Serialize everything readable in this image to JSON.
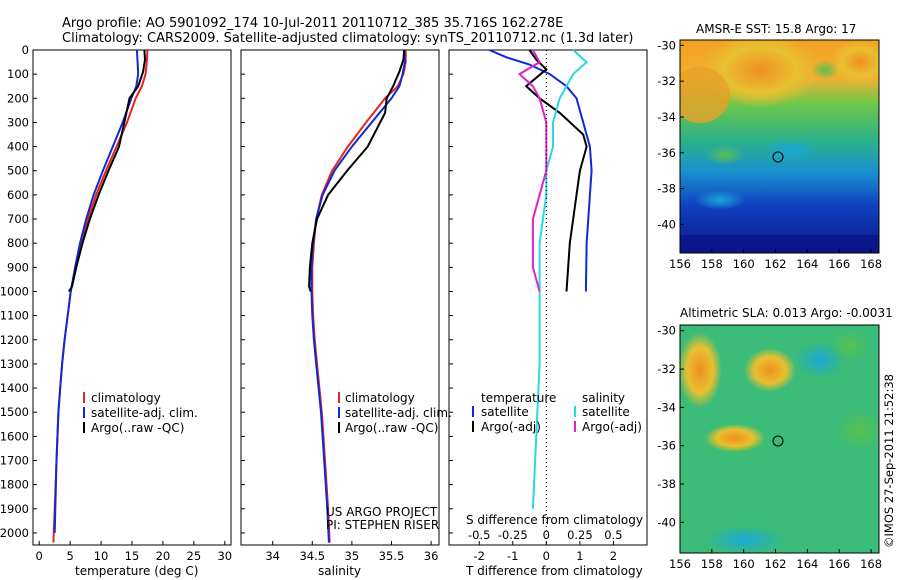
{
  "header": {
    "title_line1": "Argo profile: AO 5901092_174 10-Jul-2011 20110712_385 35.716S 162.278E",
    "title_line2": "Climatology: CARS2009. Satellite-adjusted climatology: synTS_20110712.nc (1.3d later)"
  },
  "colors": {
    "climatology": "#e8231c",
    "satellite": "#1028d8",
    "argo": "#000000",
    "sat_salinity": "#27d8e6",
    "argo_salinity": "#e020c8"
  },
  "legend": {
    "climatology": "climatology",
    "satellite_clim": "satellite-adj. clim.",
    "argo_raw": "Argo(..raw -QC)",
    "temperature_header": "temperature",
    "salinity_header": "salinity",
    "satellite": "satellite",
    "argo_adj": "Argo(-adj)"
  },
  "project": {
    "line1": "US ARGO PROJECT",
    "line2": "PI: STEPHEN RISER"
  },
  "watermark": "©IMOS 27-Sep-2011 21:52:38",
  "chart_data": [
    {
      "type": "line",
      "xlabel": "temperature (deg C)",
      "xlim": [
        -1,
        31
      ],
      "xticks": [
        0,
        5,
        10,
        15,
        20,
        25,
        30
      ],
      "ylim": [
        2050,
        0
      ],
      "yticks": [
        0,
        100,
        200,
        300,
        400,
        500,
        600,
        700,
        800,
        900,
        1000,
        1100,
        1200,
        1300,
        1400,
        1500,
        1600,
        1700,
        1800,
        1900,
        2000
      ],
      "series": [
        {
          "name": "climatology",
          "color": "#e8231c",
          "x": [
            17.5,
            17.4,
            17.2,
            16.6,
            15.6,
            14.2,
            12.5,
            10.8,
            9.2,
            7.9,
            6.8,
            5.9,
            5.1,
            4.6,
            4.1,
            3.7,
            3.4,
            3.1,
            2.8,
            2.5,
            2.3
          ],
          "y": [
            0,
            50,
            100,
            150,
            200,
            300,
            400,
            500,
            600,
            700,
            800,
            900,
            1000,
            1100,
            1200,
            1300,
            1400,
            1500,
            1700,
            1900,
            2040
          ]
        },
        {
          "name": "satellite-adj. clim.",
          "color": "#1028d8",
          "x": [
            15.8,
            15.9,
            16.0,
            15.7,
            14.9,
            13.5,
            11.9,
            10.3,
            8.8,
            7.6,
            6.6,
            5.8,
            5.1,
            4.6,
            4.1,
            3.7,
            3.4,
            3.1,
            2.8,
            2.6,
            2.5
          ],
          "y": [
            0,
            50,
            100,
            150,
            200,
            300,
            400,
            500,
            600,
            700,
            800,
            900,
            1000,
            1100,
            1200,
            1300,
            1400,
            1500,
            1700,
            1900,
            2000
          ]
        },
        {
          "name": "Argo(..raw -QC)",
          "color": "#000000",
          "x": [
            17.0,
            17.1,
            16.8,
            16.0,
            14.6,
            14.1,
            12.9,
            11.2,
            9.6,
            8.2,
            7.0,
            6.0,
            5.3,
            4.8
          ],
          "y": [
            0,
            40,
            90,
            150,
            200,
            260,
            400,
            500,
            600,
            700,
            800,
            900,
            980,
            1000
          ]
        }
      ],
      "legend_entries": [
        "climatology",
        "satellite-adj. clim.",
        "Argo(..raw -QC)"
      ]
    },
    {
      "type": "line",
      "xlabel": "salinity",
      "xlim": [
        33.6,
        36.1
      ],
      "xticks": [
        34,
        34.5,
        35,
        35.5,
        36
      ],
      "ylim": [
        2050,
        0
      ],
      "series": [
        {
          "name": "climatology",
          "color": "#e8231c",
          "x": [
            35.68,
            35.68,
            35.65,
            35.58,
            35.42,
            35.18,
            34.95,
            34.75,
            34.62,
            34.55,
            34.52,
            34.5,
            34.5,
            34.51,
            34.53,
            34.56,
            34.59,
            34.62,
            34.66,
            34.7,
            34.72
          ],
          "y": [
            0,
            50,
            100,
            150,
            200,
            300,
            400,
            500,
            600,
            700,
            800,
            900,
            1000,
            1100,
            1200,
            1300,
            1400,
            1500,
            1700,
            1900,
            2040
          ]
        },
        {
          "name": "satellite-adj. clim.",
          "color": "#1028d8",
          "x": [
            35.66,
            35.67,
            35.64,
            35.6,
            35.5,
            35.25,
            35.0,
            34.78,
            34.63,
            34.55,
            34.51,
            34.49,
            34.49,
            34.5,
            34.52,
            34.55,
            34.58,
            34.61,
            34.65,
            34.69,
            34.71
          ],
          "y": [
            0,
            50,
            100,
            150,
            200,
            300,
            400,
            500,
            600,
            700,
            800,
            900,
            1000,
            1100,
            1200,
            1300,
            1400,
            1500,
            1700,
            1900,
            2040
          ]
        },
        {
          "name": "Argo(..raw -QC)",
          "color": "#000000",
          "x": [
            35.66,
            35.65,
            35.6,
            35.52,
            35.44,
            35.42,
            35.2,
            34.94,
            34.7,
            34.56,
            34.5,
            34.47,
            34.46,
            34.48
          ],
          "y": [
            0,
            40,
            90,
            150,
            200,
            260,
            400,
            500,
            600,
            700,
            800,
            900,
            980,
            1000
          ]
        }
      ],
      "legend_entries": [
        "climatology",
        "satellite-adj. clim.",
        "Argo(..raw -QC)"
      ]
    },
    {
      "type": "line",
      "xlabel": "T difference from climatology",
      "top_axis_label": "S difference from climatology",
      "xlim": [
        -2.9,
        3.0
      ],
      "xticks": [
        -2,
        -1,
        0,
        1,
        2
      ],
      "top_xticks": [
        "-0.5",
        "-0.25",
        "0",
        "0.25",
        "0.5"
      ],
      "ylim": [
        2050,
        0
      ],
      "series": [
        {
          "name": "temperature satellite",
          "color": "#1028d8",
          "x": [
            -1.7,
            -1.2,
            -0.5,
            0.1,
            0.6,
            0.9,
            1.1,
            1.3,
            1.35,
            1.3,
            1.25,
            1.2,
            1.18
          ],
          "y": [
            0,
            30,
            60,
            100,
            150,
            200,
            300,
            400,
            500,
            600,
            700,
            800,
            1000
          ]
        },
        {
          "name": "temperature Argo(-adj)",
          "color": "#000000",
          "x": [
            -0.5,
            -0.3,
            0.0,
            -0.6,
            -0.2,
            0.4,
            1.1,
            1.2,
            1.0,
            0.9,
            0.8,
            0.7,
            0.6
          ],
          "y": [
            0,
            40,
            80,
            150,
            200,
            260,
            350,
            400,
            500,
            600,
            700,
            800,
            1000
          ]
        },
        {
          "name": "salinity satellite",
          "color": "#27d8e6",
          "x": [
            0.2,
            0.3,
            0.2,
            0.1,
            0.05,
            0.05,
            0.0,
            0.0,
            -0.05,
            -0.05,
            -0.1
          ],
          "y": [
            0,
            50,
            100,
            200,
            300,
            400,
            500,
            600,
            800,
            1300,
            1900
          ]
        },
        {
          "name": "salinity Argo(-adj)",
          "color": "#e020c8",
          "x": [
            -0.1,
            -0.05,
            -0.2,
            -0.1,
            -0.05,
            0.0,
            0.0,
            -0.1,
            -0.1,
            -0.05
          ],
          "y": [
            0,
            50,
            100,
            150,
            200,
            300,
            500,
            700,
            900,
            1000
          ]
        }
      ],
      "legend_entries": [
        "satellite",
        "Argo(-adj)",
        "satellite",
        "Argo(-adj)"
      ]
    },
    {
      "type": "heatmap",
      "title": "AMSR-E SST: 15.8 Argo: 17",
      "xticks": [
        156,
        158,
        160,
        162,
        164,
        166,
        168
      ],
      "yticks": [
        -30,
        -32,
        -34,
        -36,
        -38,
        -40
      ],
      "xlim": [
        156,
        168.5
      ],
      "ylim": [
        -41.6,
        -29.7
      ],
      "argo_position": [
        162.278,
        -35.716
      ]
    },
    {
      "type": "heatmap",
      "title": "Altimetric SLA: 0.013 Argo: -0.0031",
      "xticks": [
        156,
        158,
        160,
        162,
        164,
        166,
        168
      ],
      "yticks": [
        -30,
        -32,
        -34,
        -36,
        -38,
        -40
      ],
      "xlim": [
        156,
        168.5
      ],
      "ylim": [
        -41.6,
        -29.7
      ],
      "argo_position": [
        162.278,
        -35.716
      ]
    }
  ]
}
